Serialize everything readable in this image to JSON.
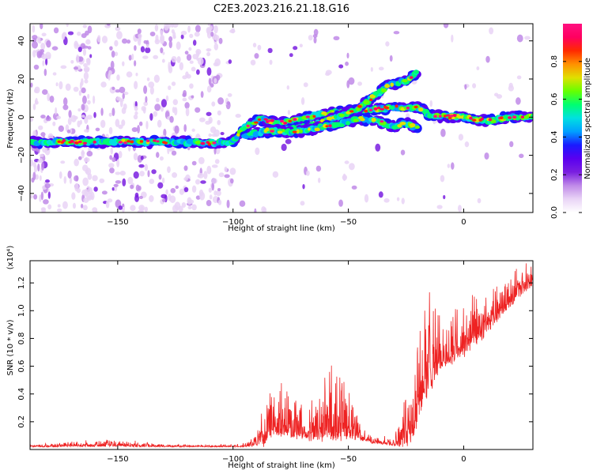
{
  "figure_title": "C2E3.2023.216.21.18.G16",
  "colors": {
    "line": "#ee2222",
    "axes": "#000000",
    "colormap": [
      "#ffffff",
      "#e9d4f6",
      "#c08ae8",
      "#7a1fe0",
      "#5a00f0",
      "#1a1aff",
      "#00a0ff",
      "#00e0e0",
      "#00ff70",
      "#66ff00",
      "#e0e000",
      "#ff9000",
      "#ff2a00",
      "#ff0060",
      "#ff1080"
    ]
  },
  "chart_data": [
    {
      "type": "heatmap",
      "xlabel": "Height of straight line (km)",
      "ylabel": "Frequency (Hz)",
      "xlim": [
        -188,
        30
      ],
      "ylim": [
        -50,
        49
      ],
      "xticks": [
        -150,
        -100,
        -50,
        0
      ],
      "yticks": [
        -40,
        -20,
        0,
        20,
        40
      ],
      "colorbar": {
        "label": "Normalized spectral amplitude",
        "range": [
          0.0,
          1.0
        ],
        "ticks": [
          0.0,
          0.2,
          0.4,
          0.6,
          0.8
        ]
      },
      "ridges": [
        {
          "name": "main",
          "points": [
            [
              -188,
              -13
            ],
            [
              -160,
              -13
            ],
            [
              -130,
              -13
            ],
            [
              -110,
              -13.5
            ],
            [
              -100,
              -13
            ],
            [
              -95,
              -5
            ],
            [
              -88,
              -1
            ],
            [
              -80,
              -3
            ],
            [
              -70,
              -1
            ],
            [
              -60,
              2
            ],
            [
              -50,
              3
            ],
            [
              -40,
              4
            ],
            [
              -30,
              5
            ],
            [
              -20,
              5
            ],
            [
              -15,
              1
            ],
            [
              -10,
              0.5
            ],
            [
              0,
              0
            ],
            [
              10,
              -2
            ],
            [
              20,
              0
            ],
            [
              30,
              0
            ]
          ]
        },
        {
          "name": "upper",
          "points": [
            [
              -85,
              -8
            ],
            [
              -75,
              -6
            ],
            [
              -65,
              -4
            ],
            [
              -55,
              0
            ],
            [
              -45,
              5
            ],
            [
              -38,
              12
            ],
            [
              -32,
              17
            ],
            [
              -25,
              19
            ],
            [
              -20,
              24
            ]
          ]
        },
        {
          "name": "lower",
          "points": [
            [
              -95,
              -10
            ],
            [
              -85,
              -7
            ],
            [
              -75,
              -8
            ],
            [
              -65,
              -6
            ],
            [
              -55,
              -4
            ],
            [
              -45,
              -1
            ],
            [
              -38,
              -2
            ],
            [
              -30,
              -5
            ],
            [
              -25,
              -3
            ],
            [
              -20,
              -6
            ]
          ]
        }
      ],
      "noise_bands_x": [
        -183,
        -165,
        -150,
        -140,
        -128,
        -118,
        -108
      ]
    },
    {
      "type": "line",
      "xlabel": "Height of straight line (km)",
      "ylabel": "SNR (10 * v/v)",
      "y_multiplier": "(x10⁴)",
      "xlim": [
        -188,
        30
      ],
      "ylim": [
        0,
        1.36
      ],
      "xticks": [
        -150,
        -100,
        -50,
        0
      ],
      "yticks": [
        0.2,
        0.4,
        0.6,
        0.8,
        1.0,
        1.2
      ],
      "series": [
        {
          "envelope": {
            "x": [
              -188,
              -180,
              -170,
              -160,
              -150,
              -140,
              -130,
              -120,
              -110,
              -100,
              -95,
              -90,
              -87,
              -85,
              -80,
              -75,
              -70,
              -65,
              -60,
              -55,
              -50,
              -45,
              -40,
              -35,
              -30,
              -25,
              -22,
              -20,
              -18,
              -15,
              -12,
              -10,
              -5,
              0,
              5,
              10,
              15,
              20,
              25,
              30
            ],
            "base": [
              0.02,
              0.02,
              0.025,
              0.025,
              0.025,
              0.022,
              0.02,
              0.02,
              0.02,
              0.02,
              0.02,
              0.03,
              0.05,
              0.1,
              0.12,
              0.12,
              0.1,
              0.08,
              0.1,
              0.12,
              0.1,
              0.08,
              0.05,
              0.04,
              0.03,
              0.06,
              0.1,
              0.2,
              0.35,
              0.45,
              0.55,
              0.6,
              0.65,
              0.7,
              0.78,
              0.85,
              0.95,
              1.05,
              1.12,
              1.2
            ],
            "amp": [
              0.015,
              0.02,
              0.03,
              0.035,
              0.035,
              0.03,
              0.02,
              0.015,
              0.015,
              0.015,
              0.02,
              0.08,
              0.3,
              0.3,
              0.3,
              0.28,
              0.22,
              0.25,
              0.35,
              0.42,
              0.3,
              0.1,
              0.04,
              0.04,
              0.08,
              0.3,
              0.6,
              0.85,
              0.6,
              0.55,
              0.45,
              0.3,
              0.3,
              0.3,
              0.28,
              0.25,
              0.22,
              0.2,
              0.18,
              0.12
            ]
          }
        }
      ]
    }
  ]
}
